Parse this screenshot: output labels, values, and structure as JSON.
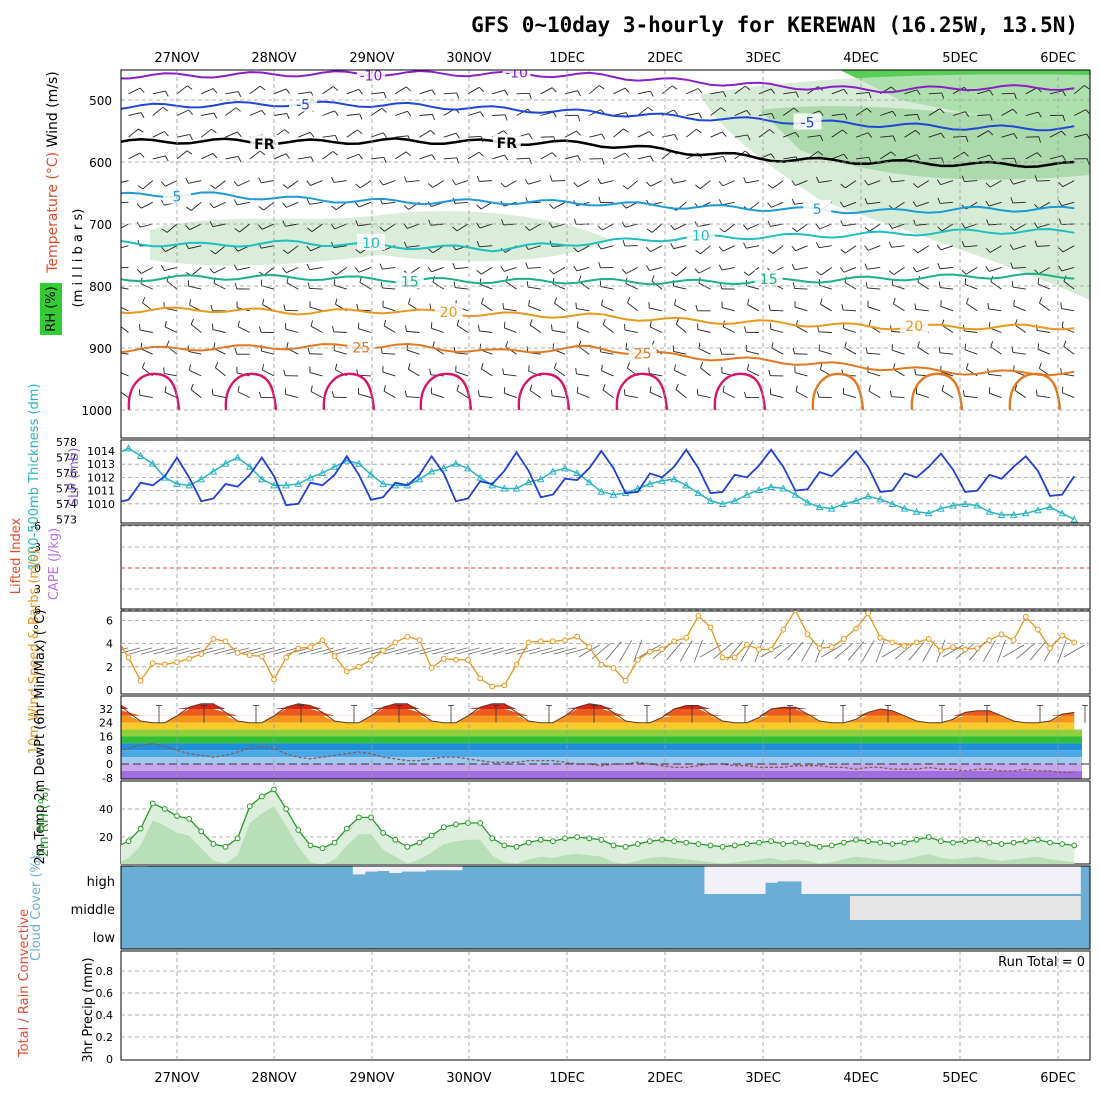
{
  "title": "GFS 0~10day 3-hourly for KEREWAN (16.25W, 13.5N)",
  "days": [
    "27NOV",
    "28NOV",
    "29NOV",
    "30NOV",
    "1DEC",
    "2DEC",
    "3DEC",
    "4DEC",
    "5DEC",
    "6DEC"
  ],
  "colors": {
    "temp_m10": "#8a1fc7",
    "temp_m5": "#1f46d6",
    "temp_fr": "#000000",
    "temp_5": "#1b9ad6",
    "temp_10": "#1fbfbf",
    "temp_15": "#1ab08a",
    "temp_20": "#e89a1f",
    "temp_25": "#e3781f",
    "temp_30": "#d4156a",
    "rh_green": "#33cc33",
    "slp": "#1f3fd6",
    "thickness": "#2ab4c4",
    "wind": "#e8961c",
    "rh2m": "#2a9a2a",
    "cloud": "#6aaed6",
    "cloud_clear": "#f2f0f8"
  },
  "chart_data": [
    {
      "type": "heatmap",
      "panel": "pressure-level cross section",
      "ylabels": [
        "Wind (m/s)",
        "Temperature (°C)",
        "RH (%)",
        "(m i l l i b a r s)"
      ],
      "yticks": [
        "500",
        "600",
        "700",
        "800",
        "900",
        "1000"
      ],
      "contour_labels": [
        "-10",
        "-5",
        "FR",
        "5",
        "10",
        "15",
        "20",
        "25",
        "10",
        "30"
      ],
      "isotherms": [
        {
          "name": "-10",
          "levels": [
            462,
            460,
            458,
            457,
            458,
            460,
            470,
            478,
            484,
            480
          ]
        },
        {
          "name": "-5",
          "levels": [
            512,
            508,
            506,
            508,
            514,
            520,
            528,
            534,
            540,
            545
          ]
        },
        {
          "name": "FR",
          "levels": [
            568,
            566,
            568,
            566,
            568,
            570,
            584,
            596,
            600,
            604
          ]
        },
        {
          "name": "5",
          "levels": [
            654,
            652,
            660,
            664,
            664,
            666,
            672,
            676,
            680,
            676
          ]
        },
        {
          "name": "10",
          "levels": [
            730,
            734,
            730,
            736,
            740,
            730,
            722,
            720,
            716,
            712
          ]
        },
        {
          "name": "15",
          "levels": [
            790,
            786,
            786,
            790,
            792,
            792,
            794,
            792,
            788,
            784
          ]
        },
        {
          "name": "20",
          "levels": [
            840,
            838,
            842,
            840,
            846,
            848,
            856,
            860,
            866,
            866
          ]
        },
        {
          "name": "25",
          "levels": [
            904,
            900,
            898,
            896,
            906,
            900,
            914,
            922,
            932,
            940
          ]
        }
      ]
    },
    {
      "type": "line",
      "panel": "thickness and SLP",
      "ylabel_left": "1000-500mb Thickness (dm)",
      "ylabel_right": "SLP (mb)",
      "left_ticks": [
        "578",
        "577",
        "576",
        "575",
        "574",
        "573"
      ],
      "right_ticks": [
        "1014",
        "1013",
        "1012",
        "1011",
        "1010"
      ],
      "series": [
        {
          "name": "SLP (mb)",
          "values": [
            1013.1,
            1010.1,
            1010.3,
            1011.6,
            1011.4,
            1012.1,
            1013.5,
            1012.0,
            1010.2,
            1010.4,
            1011.5,
            1011.3,
            1012.2,
            1013.5,
            1012.1,
            1009.9,
            1010.0,
            1011.6,
            1011.4,
            1012.2,
            1013.6,
            1012.2,
            1010.3,
            1010.5,
            1011.6,
            1011.4,
            1012.2,
            1013.6,
            1012.3,
            1010.2,
            1010.4,
            1011.7,
            1011.5,
            1012.5,
            1013.9,
            1012.5,
            1010.5,
            1010.7,
            1011.9,
            1011.8,
            1012.7,
            1014.0,
            1012.7,
            1010.8,
            1010.9,
            1012.3,
            1012.0,
            1012.8,
            1014.1,
            1012.7,
            1010.8,
            1010.9,
            1012.2,
            1012.0,
            1012.9,
            1014.1,
            1012.8,
            1011.0,
            1011.1,
            1012.4,
            1012.1,
            1013.0,
            1014.0,
            1012.8,
            1010.9,
            1011.0,
            1012.3,
            1012.0,
            1012.8,
            1013.8,
            1012.6,
            1010.9,
            1011.0,
            1012.2,
            1011.9,
            1012.8,
            1013.6,
            1012.5,
            1010.6,
            1010.7,
            1012.1
          ]
        },
        {
          "name": "1000-500mb Thickness (dm)",
          "values": [
            576.5,
            577.2,
            577.6,
            577.1,
            576.6,
            575.7,
            575.3,
            575.2,
            575.6,
            576.1,
            576.6,
            577.0,
            576.4,
            575.6,
            575.2,
            575.2,
            575.3,
            575.7,
            576.0,
            576.4,
            576.8,
            576.6,
            575.9,
            575.3,
            575.2,
            575.2,
            575.6,
            576.1,
            576.3,
            576.6,
            576.3,
            575.7,
            575.2,
            575.0,
            575.0,
            575.4,
            575.6,
            576.1,
            576.3,
            576.0,
            575.4,
            574.8,
            574.6,
            574.7,
            575.0,
            575.3,
            575.5,
            575.6,
            575.2,
            574.7,
            574.2,
            574.0,
            574.2,
            574.6,
            574.9,
            575.1,
            575.0,
            574.6,
            574.1,
            573.8,
            573.7,
            574.0,
            574.2,
            574.5,
            574.3,
            574.0,
            573.7,
            573.5,
            573.4,
            573.7,
            573.9,
            574.0,
            573.9,
            573.5,
            573.3,
            573.3,
            573.4,
            573.6,
            573.8,
            573.4,
            573.0
          ]
        }
      ]
    },
    {
      "type": "line",
      "panel": "instability",
      "ylabel_left": "Lifted Index",
      "ylabel_right": "CAPE (J/kg)",
      "yticks": [
        "-6",
        "-3",
        "0",
        "3",
        "6"
      ],
      "series": [
        {
          "name": "Lifted Index",
          "values": []
        }
      ]
    },
    {
      "type": "line",
      "panel": "10m wind",
      "ylabel": "10m Wind Speed & Barbs (m/s)",
      "yticks": [
        "6",
        "4",
        "2",
        "0"
      ],
      "series": [
        {
          "name": "10m Wind Speed",
          "values": [
            4.6,
            4.5,
            2.8,
            0.8,
            2.3,
            2.2,
            2.4,
            2.7,
            3.1,
            4.4,
            4.2,
            3.2,
            3.0,
            2.9,
            0.9,
            2.8,
            3.6,
            3.7,
            4.3,
            2.9,
            1.6,
            2.0,
            2.6,
            3.4,
            4.1,
            4.6,
            4.3,
            1.9,
            2.7,
            2.6,
            2.6,
            1.0,
            0.3,
            0.4,
            2.2,
            4.1,
            4.2,
            4.2,
            4.3,
            4.6,
            3.7,
            2.2,
            1.9,
            0.8,
            2.6,
            3.3,
            3.5,
            4.2,
            4.5,
            6.4,
            5.4,
            2.8,
            2.8,
            3.9,
            3.5,
            3.5,
            5.2,
            6.9,
            4.8,
            3.6,
            3.7,
            4.4,
            5.3,
            6.6,
            4.5,
            4.1,
            3.8,
            4.1,
            4.4,
            3.4,
            3.7,
            3.5,
            3.6,
            4.3,
            4.8,
            4.3,
            6.3,
            5.2,
            3.6,
            4.7,
            4.1
          ]
        }
      ]
    },
    {
      "type": "area",
      "panel": "2m temperature",
      "ylabel": "2m Temp 2m DewPt (6hr Min/Max) (°C)",
      "yticks": [
        "32",
        "24",
        "16",
        "8",
        "0",
        "-8"
      ],
      "series": [
        {
          "name": "2m Temp",
          "values": [
            35,
            36,
            30,
            25,
            24,
            24,
            28,
            33,
            35,
            35,
            30,
            25,
            24,
            24,
            28,
            33,
            35,
            34,
            30,
            25,
            24,
            24,
            28,
            33,
            35,
            35,
            30,
            25,
            24,
            24,
            28,
            33,
            35,
            35,
            30,
            25,
            24,
            24,
            28,
            33,
            35,
            34,
            30,
            25,
            24,
            24,
            27,
            32,
            34,
            34,
            29,
            25,
            24,
            24,
            27,
            32,
            33,
            33,
            29,
            25,
            24,
            24,
            26,
            30,
            32,
            31,
            28,
            25,
            24,
            24,
            26,
            30,
            31,
            31,
            28,
            25,
            24,
            24,
            25,
            29,
            30
          ]
        },
        {
          "name": "2m DewPt",
          "values": [
            6,
            7,
            9,
            11,
            12,
            10,
            8,
            6,
            5,
            4,
            5,
            7,
            9,
            10,
            9,
            6,
            4,
            3,
            4,
            5,
            6,
            7,
            6,
            4,
            3,
            2,
            2,
            3,
            4,
            4,
            3,
            2,
            1,
            1,
            1,
            2,
            2,
            2,
            1,
            0,
            0,
            -1,
            0,
            0,
            1,
            0,
            -1,
            -2,
            -2,
            -1,
            0,
            0,
            -1,
            -1,
            -2,
            -2,
            -2,
            -1,
            -1,
            -1,
            -2,
            -2,
            -3,
            -2,
            -2,
            -3,
            -3,
            -3,
            -2,
            -3,
            -3,
            -4,
            -3,
            -3,
            -4,
            -4,
            -3,
            -4,
            -4,
            -5,
            -5
          ]
        }
      ]
    },
    {
      "type": "area",
      "panel": "2m relative humidity",
      "ylabel": "2m RH (%)",
      "yticks": [
        "40",
        "20"
      ],
      "series": [
        {
          "name": "2m RH",
          "values": [
            14,
            13,
            17,
            26,
            44,
            40,
            35,
            33,
            24,
            15,
            13,
            19,
            42,
            49,
            54,
            40,
            25,
            14,
            12,
            16,
            26,
            34,
            34,
            23,
            18,
            13,
            16,
            21,
            27,
            29,
            30,
            30,
            19,
            14,
            13,
            16,
            18,
            17,
            19,
            20,
            19,
            18,
            14,
            13,
            15,
            17,
            18,
            17,
            16,
            15,
            14,
            13,
            14,
            15,
            16,
            17,
            15,
            16,
            15,
            13,
            14,
            16,
            18,
            17,
            16,
            15,
            16,
            18,
            20,
            17,
            16,
            17,
            18,
            16,
            15,
            16,
            17,
            18,
            16,
            15,
            14
          ]
        }
      ]
    },
    {
      "type": "area",
      "panel": "cloud cover",
      "ylabel": "Cloud Cover (%)",
      "yticks": [
        "high",
        "middle",
        "low"
      ],
      "series": [
        {
          "name": "high",
          "values": [
            100,
            100,
            100,
            97,
            100,
            100,
            100,
            100,
            100,
            100,
            100,
            100,
            100,
            100,
            100,
            100,
            100,
            100,
            100,
            100,
            100,
            70,
            80,
            82,
            75,
            80,
            80,
            85,
            85,
            85,
            100,
            100,
            100,
            100,
            100,
            100,
            100,
            100,
            100,
            100,
            100,
            100,
            100,
            100,
            100,
            100,
            100,
            100,
            100,
            100,
            0,
            0,
            0,
            0,
            0,
            40,
            45,
            45,
            0,
            0,
            0,
            0,
            0,
            0,
            0,
            0,
            0,
            0,
            0,
            0,
            0,
            0,
            0,
            0,
            0,
            0,
            0,
            0,
            0,
            0,
            0
          ]
        },
        {
          "name": "middle",
          "values": [
            100,
            100,
            100,
            100,
            100,
            100,
            100,
            100,
            100,
            100,
            100,
            100,
            100,
            100,
            100,
            100,
            100,
            100,
            100,
            100,
            100,
            100,
            100,
            100,
            100,
            100,
            100,
            100,
            100,
            100,
            100,
            100,
            100,
            100,
            100,
            100,
            100,
            100,
            100,
            100,
            100,
            100,
            100,
            100,
            100,
            100,
            100,
            100,
            100,
            100,
            100,
            100,
            100,
            100,
            100,
            100,
            100,
            100,
            100,
            100,
            100,
            100,
            0,
            0,
            0,
            0,
            0,
            0,
            0,
            0,
            0,
            0,
            0,
            0,
            0,
            0,
            0,
            0,
            0,
            0,
            0
          ]
        },
        {
          "name": "low",
          "values": [
            100,
            100,
            100,
            100,
            100,
            100,
            100,
            100,
            100,
            100,
            100,
            100,
            100,
            100,
            100,
            100,
            100,
            100,
            100,
            100,
            100,
            100,
            100,
            100,
            100,
            100,
            100,
            100,
            100,
            100,
            100,
            100,
            100,
            100,
            100,
            100,
            100,
            100,
            100,
            100,
            100,
            100,
            100,
            100,
            100,
            100,
            100,
            100,
            100,
            100,
            100,
            100,
            100,
            100,
            100,
            100,
            100,
            100,
            100,
            100,
            100,
            100,
            100,
            100,
            100,
            100,
            100,
            100,
            100,
            100,
            100,
            100,
            100,
            100,
            100,
            100,
            100,
            100,
            100,
            100,
            100
          ]
        }
      ]
    },
    {
      "type": "bar",
      "panel": "precipitation",
      "ylabel_left": "Total / Rain Convective",
      "ylabel": "3hr Precip (mm)",
      "yticks": [
        "0.8",
        "0.6",
        "0.4",
        "0.2",
        "0"
      ],
      "ylim": [
        0,
        0.9
      ],
      "run_total": "Run Total = 0",
      "values": []
    }
  ]
}
